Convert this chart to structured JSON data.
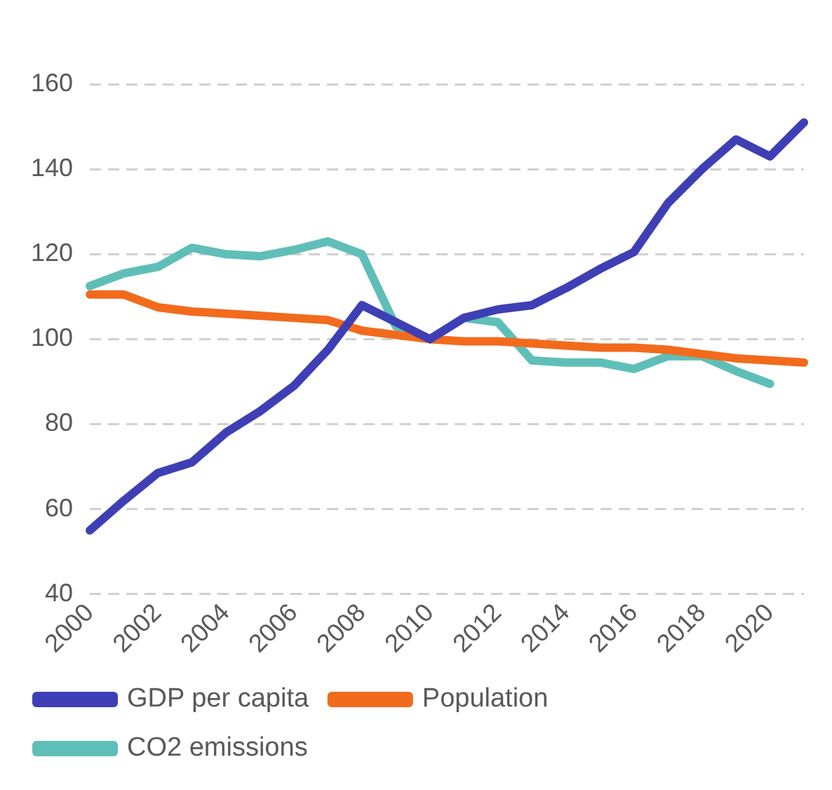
{
  "chart_data": {
    "type": "line",
    "categories": [
      "2000",
      null,
      "2002",
      null,
      "2004",
      null,
      "2006",
      null,
      "2008",
      null,
      "2010",
      null,
      "2012",
      null,
      "2014",
      null,
      "2016",
      null,
      "2018",
      null,
      "2020",
      null
    ],
    "series": [
      {
        "name": "GDP per capita",
        "color": "#3f3fb5",
        "values": [
          55,
          62,
          68.5,
          71,
          78,
          83,
          89,
          97.5,
          108,
          104,
          100,
          105,
          107,
          108,
          112,
          116.5,
          120.5,
          132,
          140,
          147,
          143,
          151
        ]
      },
      {
        "name": "Population",
        "color": "#f26b1d",
        "values": [
          110.5,
          110.5,
          107.5,
          106.5,
          106,
          105.5,
          105,
          104.5,
          102,
          101,
          100,
          99.5,
          99.5,
          99,
          98.5,
          98,
          98,
          97.5,
          96.5,
          95.5,
          95,
          94.5
        ]
      },
      {
        "name": "CO2 emissions",
        "color": "#5fbfb8",
        "values": [
          112.5,
          115.5,
          117,
          121.5,
          120,
          119.5,
          121,
          123,
          120,
          103,
          100,
          105,
          104,
          95,
          94.5,
          94.5,
          93,
          96,
          96,
          92.5,
          89.5,
          null
        ]
      }
    ],
    "ylim": [
      40,
      160
    ],
    "yticks": [
      40,
      60,
      80,
      100,
      120,
      140,
      160
    ],
    "grid": "y",
    "legend": "bottom",
    "marker": "none",
    "line_style": "solid"
  }
}
